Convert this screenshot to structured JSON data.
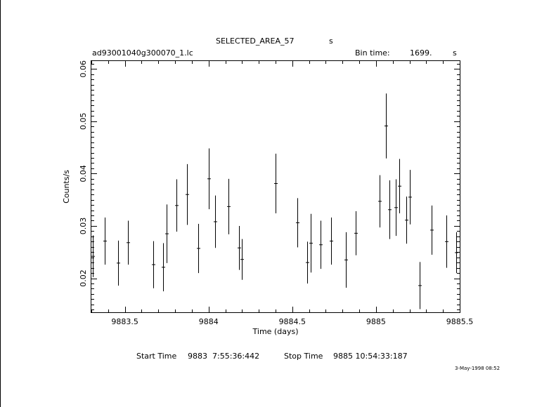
{
  "header": {
    "title": "SELECTED_AREA_57",
    "title_unit": "s",
    "filename": "ad93001040g300070_1.lc",
    "bin_time_label": "Bin time:",
    "bin_time_value": "1699.",
    "bin_time_unit": "s"
  },
  "footer": {
    "start_label": "Start Time",
    "start_value": "9883  7:55:36:442",
    "stop_label": "Stop Time",
    "stop_value": "9885 10:54:33:187",
    "date_stamp": "3-May-1998 08:52"
  },
  "chart_data": {
    "type": "scatter",
    "xlabel": "Time (days)",
    "ylabel": "Counts/s",
    "xlim": [
      9883.3,
      9885.5
    ],
    "ylim": [
      0.0135,
      0.0615
    ],
    "xticks": [
      9883.5,
      9884,
      9884.5,
      9885,
      9885.5
    ],
    "xtick_labels": [
      "9883.5",
      "9884",
      "9884.5",
      "9885",
      "9885.5"
    ],
    "yticks": [
      0.02,
      0.03,
      0.04,
      0.05,
      0.06
    ],
    "ytick_labels": [
      "0.02",
      "0.03",
      "0.04",
      "0.05",
      "0.06"
    ],
    "grid": false,
    "points": [
      {
        "x": 9883.31,
        "y": 0.0242,
        "yerr": 0.004
      },
      {
        "x": 9883.38,
        "y": 0.0271,
        "yerr": 0.0045
      },
      {
        "x": 9883.46,
        "y": 0.0229,
        "yerr": 0.0043
      },
      {
        "x": 9883.52,
        "y": 0.0268,
        "yerr": 0.0042
      },
      {
        "x": 9883.67,
        "y": 0.0226,
        "yerr": 0.0045
      },
      {
        "x": 9883.73,
        "y": 0.0221,
        "yerr": 0.0046
      },
      {
        "x": 9883.75,
        "y": 0.0285,
        "yerr": 0.0056
      },
      {
        "x": 9883.81,
        "y": 0.0339,
        "yerr": 0.005
      },
      {
        "x": 9883.87,
        "y": 0.036,
        "yerr": 0.0058
      },
      {
        "x": 9883.94,
        "y": 0.0257,
        "yerr": 0.0047
      },
      {
        "x": 9884.0,
        "y": 0.039,
        "yerr": 0.0058
      },
      {
        "x": 9884.04,
        "y": 0.0308,
        "yerr": 0.005
      },
      {
        "x": 9884.12,
        "y": 0.0337,
        "yerr": 0.0053
      },
      {
        "x": 9884.18,
        "y": 0.0258,
        "yerr": 0.0042
      },
      {
        "x": 9884.2,
        "y": 0.0236,
        "yerr": 0.0039
      },
      {
        "x": 9884.4,
        "y": 0.0381,
        "yerr": 0.0057
      },
      {
        "x": 9884.53,
        "y": 0.0306,
        "yerr": 0.0047
      },
      {
        "x": 9884.59,
        "y": 0.023,
        "yerr": 0.004
      },
      {
        "x": 9884.61,
        "y": 0.0267,
        "yerr": 0.0056
      },
      {
        "x": 9884.67,
        "y": 0.0264,
        "yerr": 0.0046
      },
      {
        "x": 9884.73,
        "y": 0.0271,
        "yerr": 0.0045
      },
      {
        "x": 9884.82,
        "y": 0.0235,
        "yerr": 0.0053
      },
      {
        "x": 9884.88,
        "y": 0.0286,
        "yerr": 0.0042
      },
      {
        "x": 9885.02,
        "y": 0.0347,
        "yerr": 0.005
      },
      {
        "x": 9885.06,
        "y": 0.0491,
        "yerr": 0.0062
      },
      {
        "x": 9885.08,
        "y": 0.0331,
        "yerr": 0.0056
      },
      {
        "x": 9885.12,
        "y": 0.0335,
        "yerr": 0.0054
      },
      {
        "x": 9885.14,
        "y": 0.0376,
        "yerr": 0.0052
      },
      {
        "x": 9885.18,
        "y": 0.0311,
        "yerr": 0.0045
      },
      {
        "x": 9885.2,
        "y": 0.0355,
        "yerr": 0.0052
      },
      {
        "x": 9885.26,
        "y": 0.0186,
        "yerr": 0.0045
      },
      {
        "x": 9885.33,
        "y": 0.0292,
        "yerr": 0.0047
      },
      {
        "x": 9885.42,
        "y": 0.027,
        "yerr": 0.005
      },
      {
        "x": 9885.48,
        "y": 0.0249,
        "yerr": 0.0039
      }
    ]
  }
}
